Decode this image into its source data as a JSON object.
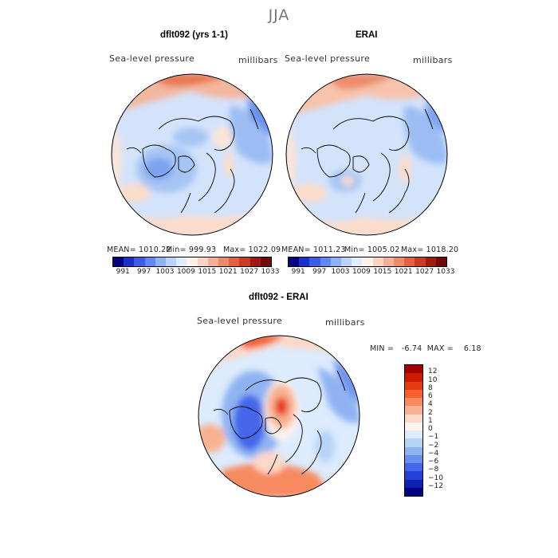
{
  "figure": {
    "season": "JJA",
    "model_panel": {
      "title": "dflt092 (yrs 1-1)",
      "variable": "Sea-level pressure",
      "units": "millibars",
      "mean_label": "MEAN= 1010.22",
      "min_label": "Min= 999.93",
      "max_label": "Max= 1022.09"
    },
    "obs_panel": {
      "title": "ERAI",
      "variable": "Sea-level pressure",
      "units": "millibars",
      "mean_label": "MEAN= 1011.23",
      "min_label": "Min= 1005.02",
      "max_label": "Max= 1018.20"
    },
    "diff_panel": {
      "title": "dflt092 - ERAI",
      "variable": "Sea-level pressure",
      "units": "millibars",
      "minmax_label": "MIN =   -6.74  MAX =    6.18"
    }
  },
  "chart_data": [
    {
      "type": "heatmap",
      "title": "dflt092 (yrs 1-1)",
      "variable": "Sea-level pressure",
      "units": "millibars",
      "mean": 1010.22,
      "min": 999.93,
      "max": 1022.09,
      "colorbar_ticks": [
        "991",
        "997",
        "1003",
        "1009",
        "1015",
        "1021",
        "1027",
        "1033"
      ],
      "colors": [
        "#000080",
        "#1a30c8",
        "#3c5ee6",
        "#6088f0",
        "#8fb1f5",
        "#bad3fa",
        "#e1edfd",
        "#fdf1ea",
        "#f8d4c2",
        "#f2b096",
        "#ec8b6a",
        "#e3613e",
        "#cc3a22",
        "#a01a12",
        "#6e0a0a"
      ]
    },
    {
      "type": "heatmap",
      "title": "ERAI",
      "variable": "Sea-level pressure",
      "units": "millibars",
      "mean": 1011.23,
      "min": 1005.02,
      "max": 1018.2,
      "colorbar_ticks": [
        "991",
        "997",
        "1003",
        "1009",
        "1015",
        "1021",
        "1027",
        "1033"
      ],
      "colors": [
        "#000080",
        "#1a30c8",
        "#3c5ee6",
        "#6088f0",
        "#8fb1f5",
        "#bad3fa",
        "#e1edfd",
        "#fdf1ea",
        "#f8d4c2",
        "#f2b096",
        "#ec8b6a",
        "#e3613e",
        "#cc3a22",
        "#a01a12",
        "#6e0a0a"
      ]
    },
    {
      "type": "heatmap",
      "title": "dflt092 - ERAI",
      "variable": "Sea-level pressure",
      "units": "millibars",
      "min": -6.74,
      "max": 6.18,
      "colorbar_ticks": [
        "12",
        "10",
        "8",
        "6",
        "4",
        "2",
        "1",
        "0",
        "−1",
        "−2",
        "−4",
        "−6",
        "−8",
        "−10",
        "−12"
      ],
      "colors": [
        "#a00000",
        "#cc1a00",
        "#e63a10",
        "#f5602e",
        "#f88a60",
        "#f8b292",
        "#fcd8c8",
        "#fdf3ec",
        "#dcebfd",
        "#b7d3f8",
        "#8fb3f2",
        "#6a8fee",
        "#4466ea",
        "#2440d8",
        "#1020b0",
        "#000080"
      ]
    }
  ]
}
